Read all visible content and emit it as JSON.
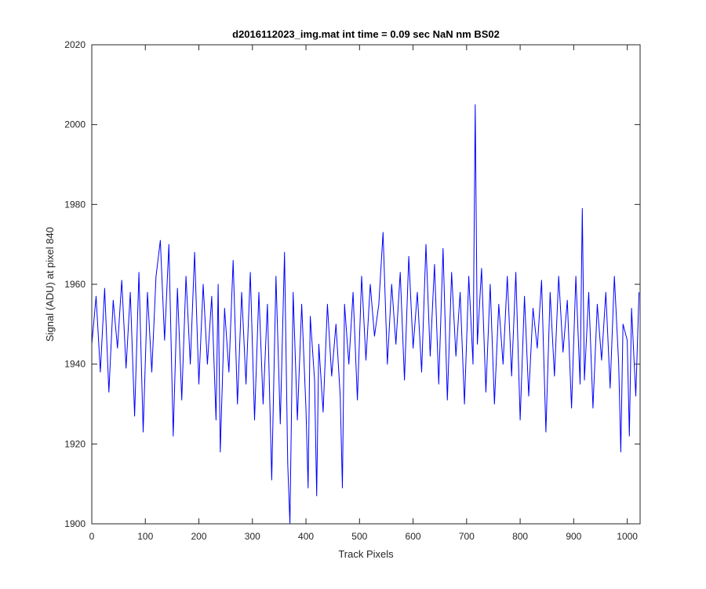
{
  "chart_data": {
    "type": "line",
    "title": "d2016112023_img.mat int time = 0.09 sec  NaN nm BS02",
    "xlabel": "Track Pixels",
    "ylabel": "Signal (ADU) at pixel 840",
    "xlim": [
      0,
      1024
    ],
    "ylim": [
      1900,
      2020
    ],
    "xticks": [
      0,
      100,
      200,
      300,
      400,
      500,
      600,
      700,
      800,
      900,
      1000
    ],
    "yticks": [
      1900,
      1920,
      1940,
      1960,
      1980,
      2000,
      2020
    ],
    "grid": false,
    "series": [
      {
        "color": "#0000ff",
        "x": [
          0,
          8,
          16,
          24,
          32,
          40,
          48,
          56,
          64,
          72,
          80,
          88,
          96,
          104,
          112,
          120,
          128,
          136,
          144,
          152,
          160,
          168,
          176,
          184,
          192,
          200,
          208,
          216,
          224,
          232,
          236,
          240,
          248,
          256,
          264,
          272,
          280,
          288,
          296,
          304,
          312,
          320,
          328,
          336,
          344,
          352,
          360,
          366,
          370,
          376,
          384,
          392,
          400,
          404,
          408,
          416,
          420,
          424,
          432,
          440,
          448,
          456,
          464,
          468,
          472,
          480,
          488,
          496,
          504,
          512,
          520,
          528,
          536,
          544,
          552,
          560,
          568,
          576,
          584,
          592,
          600,
          608,
          616,
          624,
          632,
          640,
          648,
          656,
          664,
          672,
          680,
          688,
          696,
          704,
          712,
          716,
          720,
          728,
          736,
          744,
          752,
          760,
          768,
          776,
          784,
          792,
          800,
          808,
          816,
          824,
          832,
          840,
          848,
          856,
          864,
          872,
          880,
          888,
          896,
          904,
          912,
          916,
          920,
          928,
          936,
          944,
          952,
          960,
          968,
          976,
          984,
          988,
          992,
          1000,
          1004,
          1008,
          1016,
          1022
        ],
        "y": [
          1945,
          1957,
          1938,
          1959,
          1933,
          1956,
          1944,
          1961,
          1939,
          1958,
          1927,
          1963,
          1923,
          1958,
          1938,
          1962,
          1971,
          1946,
          1970,
          1922,
          1959,
          1931,
          1962,
          1940,
          1968,
          1935,
          1960,
          1940,
          1957,
          1926,
          1960,
          1918,
          1954,
          1938,
          1966,
          1930,
          1958,
          1935,
          1963,
          1926,
          1958,
          1930,
          1955,
          1911,
          1962,
          1925,
          1968,
          1915,
          1900,
          1958,
          1926,
          1955,
          1929,
          1909,
          1952,
          1936,
          1907,
          1945,
          1928,
          1955,
          1937,
          1950,
          1932,
          1909,
          1955,
          1940,
          1958,
          1931,
          1962,
          1941,
          1960,
          1947,
          1955,
          1973,
          1940,
          1960,
          1945,
          1963,
          1936,
          1967,
          1944,
          1958,
          1938,
          1970,
          1942,
          1965,
          1935,
          1969,
          1931,
          1963,
          1942,
          1958,
          1930,
          1962,
          1940,
          2005,
          1945,
          1964,
          1933,
          1960,
          1930,
          1955,
          1940,
          1962,
          1937,
          1963,
          1926,
          1957,
          1932,
          1954,
          1944,
          1961,
          1923,
          1958,
          1937,
          1962,
          1943,
          1956,
          1929,
          1962,
          1935,
          1979,
          1936,
          1958,
          1929,
          1955,
          1941,
          1958,
          1934,
          1962,
          1940,
          1918,
          1950,
          1946,
          1922,
          1954,
          1932,
          1958
        ]
      }
    ]
  }
}
